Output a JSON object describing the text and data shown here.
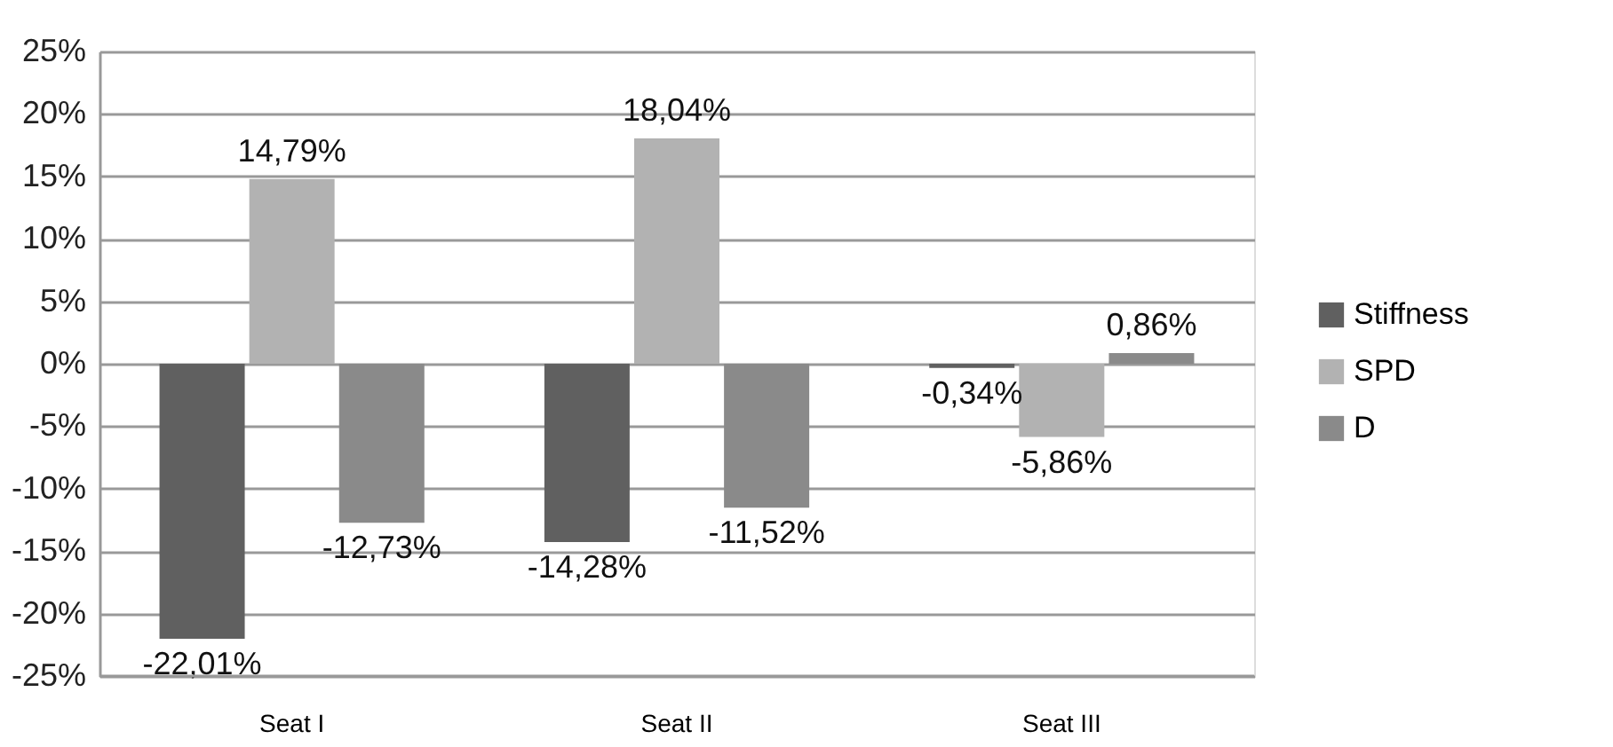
{
  "chart_data": {
    "type": "bar",
    "categories": [
      "Seat I",
      "Seat II",
      "Seat III"
    ],
    "series": [
      {
        "name": "Stiffness",
        "color": "#606060",
        "values": [
          -22.01,
          -14.28,
          -0.34
        ],
        "value_labels": [
          "-22,01%",
          "-14,28%",
          "-0,34%"
        ]
      },
      {
        "name": "SPD",
        "color": "#b2b2b2",
        "values": [
          14.79,
          18.04,
          -5.86
        ],
        "value_labels": [
          "14,79%",
          "18,04%",
          "-5,86%"
        ]
      },
      {
        "name": "D",
        "color": "#8a8a8a",
        "values": [
          -12.73,
          -11.52,
          0.86
        ],
        "value_labels": [
          "-12,73%",
          "-11,52%",
          "0,86%"
        ]
      }
    ],
    "ylim": [
      -25,
      25
    ],
    "yticks": [
      {
        "value": -25,
        "label": "-25%"
      },
      {
        "value": -20,
        "label": "-20%"
      },
      {
        "value": -15,
        "label": "-15%"
      },
      {
        "value": -10,
        "label": "-10%"
      },
      {
        "value": -5,
        "label": "-5%"
      },
      {
        "value": 0,
        "label": "0%"
      },
      {
        "value": 5,
        "label": "5%"
      },
      {
        "value": 10,
        "label": "10%"
      },
      {
        "value": 15,
        "label": "15%"
      },
      {
        "value": 20,
        "label": "20%"
      },
      {
        "value": 25,
        "label": "25%"
      }
    ],
    "grid": "y",
    "legend": "right"
  }
}
